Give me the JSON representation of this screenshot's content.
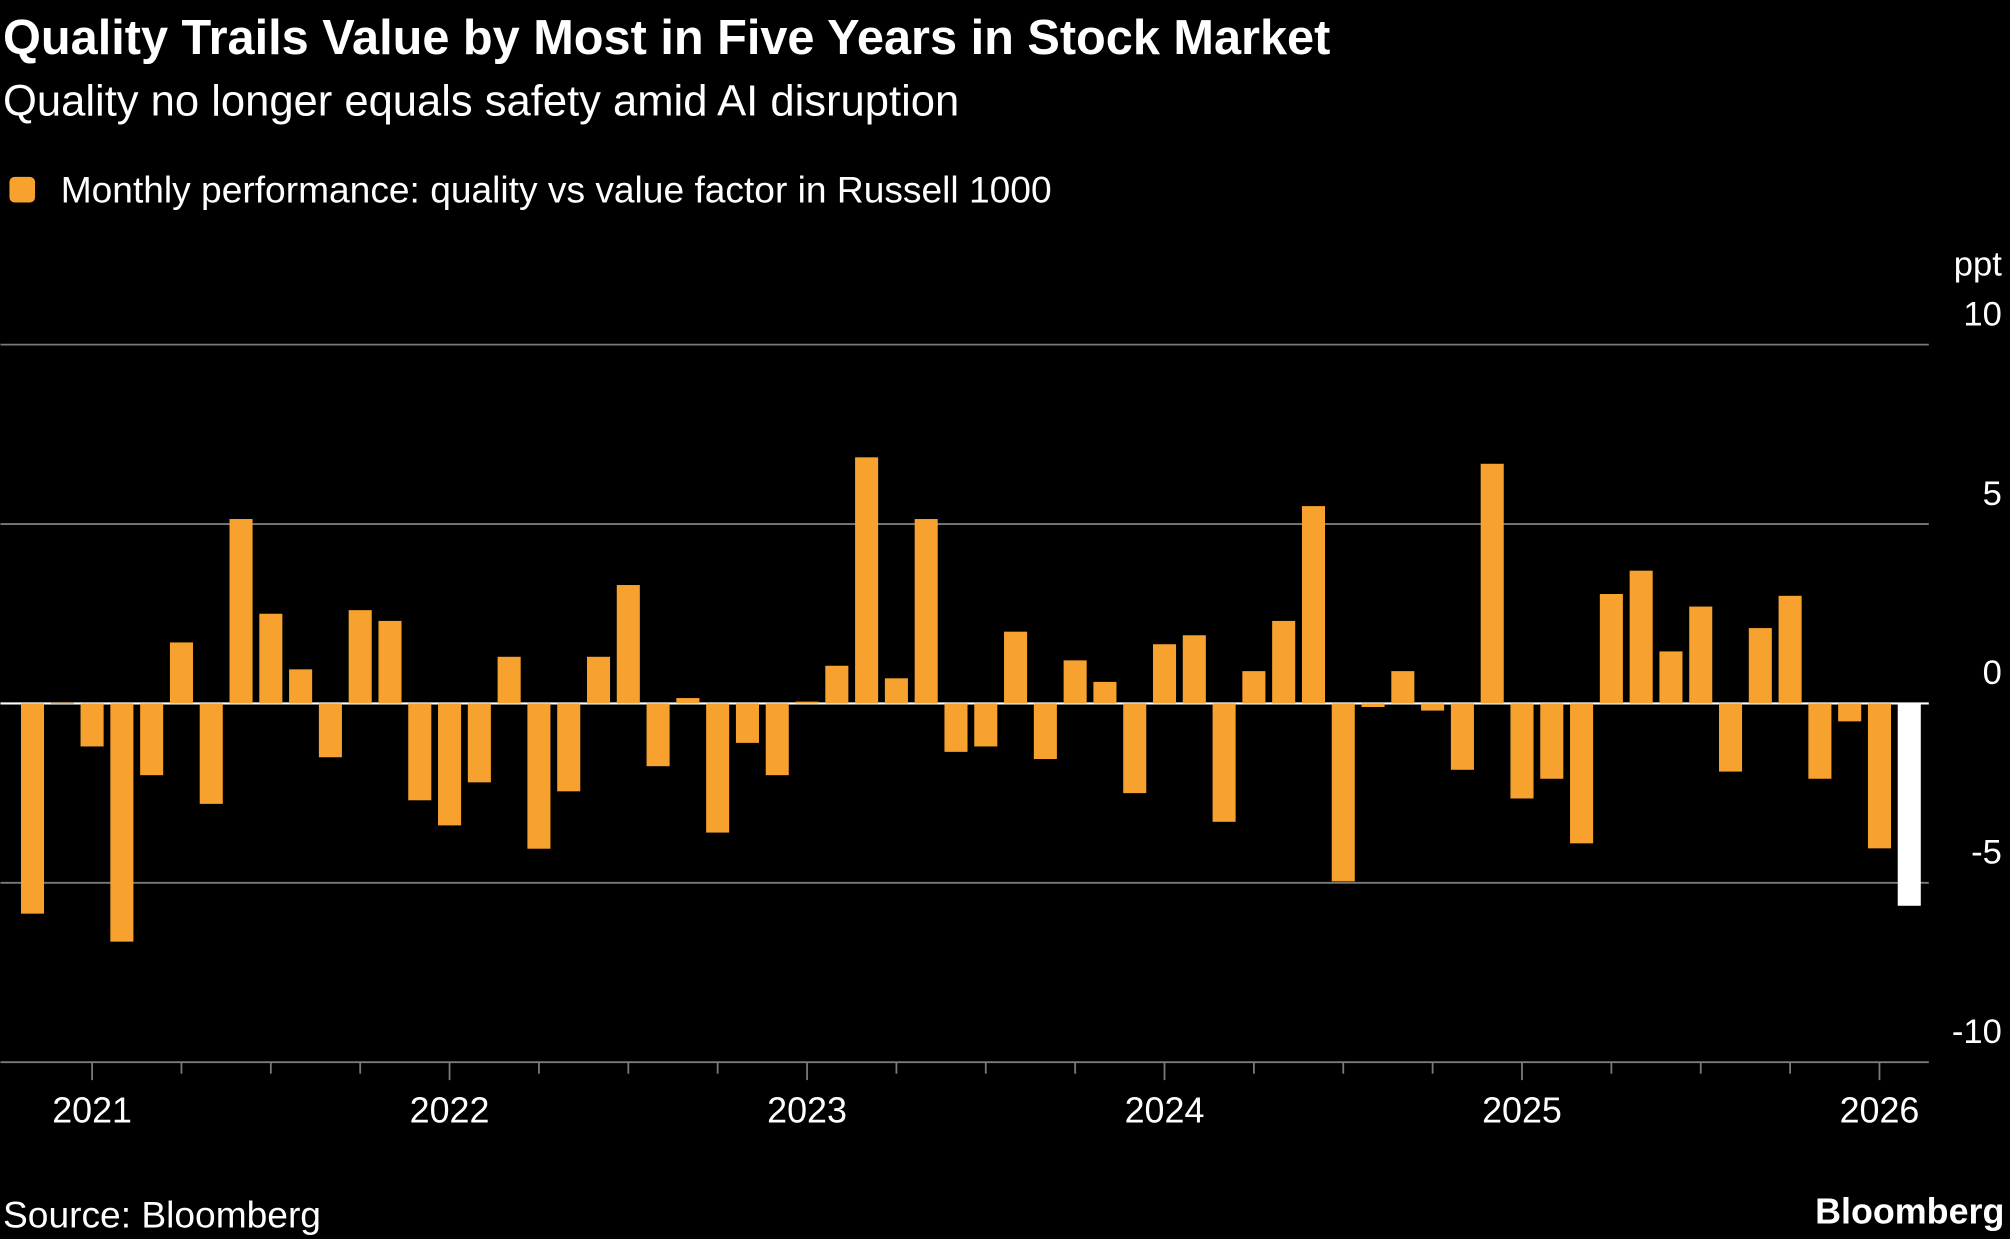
{
  "chart_data": {
    "type": "bar",
    "title": "Quality Trails Value by Most in Five Years in Stock Market",
    "subtitle": "Quality no longer equals safety amid AI disruption",
    "y_axis_label": "ppt",
    "source": "Source: Bloomberg",
    "brand": "Bloomberg",
    "legend": "top-left",
    "grid": true,
    "categories": [
      null,
      null,
      "2021",
      null,
      null,
      null,
      null,
      null,
      null,
      null,
      null,
      null,
      null,
      null,
      "2022",
      null,
      null,
      null,
      null,
      null,
      null,
      null,
      null,
      null,
      null,
      null,
      "2023",
      null,
      null,
      null,
      null,
      null,
      null,
      null,
      null,
      null,
      null,
      null,
      "2024",
      null,
      null,
      null,
      null,
      null,
      null,
      null,
      null,
      null,
      null,
      null,
      "2025",
      null,
      null,
      null,
      null,
      null,
      null,
      null,
      null,
      null,
      null,
      null,
      "2026",
      null
    ],
    "series": [
      {
        "name": "Monthly performance: quality vs value factor in Russell 1000",
        "color": "#f7a12f",
        "values": [
          -5.86,
          0.02,
          -1.2,
          -6.64,
          -2.0,
          1.7,
          -2.8,
          5.14,
          2.5,
          0.95,
          -1.5,
          2.6,
          2.3,
          -2.7,
          -3.4,
          -2.2,
          1.3,
          -4.05,
          -2.45,
          1.3,
          3.3,
          -1.75,
          0.15,
          -3.6,
          -1.1,
          -2.0,
          0.05,
          1.05,
          6.86,
          0.7,
          5.14,
          -1.35,
          -1.2,
          2.0,
          -1.55,
          1.2,
          0.6,
          -2.5,
          1.65,
          1.9,
          -3.3,
          0.9,
          2.3,
          5.5,
          -4.96,
          -0.1,
          0.9,
          -0.2,
          -1.85,
          6.68,
          -2.65,
          -2.1,
          -3.9,
          3.05,
          3.7,
          1.45,
          2.7,
          -1.9,
          2.1,
          3.0,
          -2.1,
          -0.5,
          -4.04,
          -5.64
        ],
        "colors": [
          "#f7a12f",
          "#f7a12f",
          "#f7a12f",
          "#f7a12f",
          "#f7a12f",
          "#f7a12f",
          "#f7a12f",
          "#f7a12f",
          "#f7a12f",
          "#f7a12f",
          "#f7a12f",
          "#f7a12f",
          "#f7a12f",
          "#f7a12f",
          "#f7a12f",
          "#f7a12f",
          "#f7a12f",
          "#f7a12f",
          "#f7a12f",
          "#f7a12f",
          "#f7a12f",
          "#f7a12f",
          "#f7a12f",
          "#f7a12f",
          "#f7a12f",
          "#f7a12f",
          "#f7a12f",
          "#f7a12f",
          "#f7a12f",
          "#f7a12f",
          "#f7a12f",
          "#f7a12f",
          "#f7a12f",
          "#f7a12f",
          "#f7a12f",
          "#f7a12f",
          "#f7a12f",
          "#f7a12f",
          "#f7a12f",
          "#f7a12f",
          "#f7a12f",
          "#f7a12f",
          "#f7a12f",
          "#f7a12f",
          "#f7a12f",
          "#f7a12f",
          "#f7a12f",
          "#f7a12f",
          "#f7a12f",
          "#f7a12f",
          "#f7a12f",
          "#f7a12f",
          "#f7a12f",
          "#f7a12f",
          "#f7a12f",
          "#f7a12f",
          "#f7a12f",
          "#f7a12f",
          "#f7a12f",
          "#f7a12f",
          "#f7a12f",
          "#f7a12f",
          "#f7a12f",
          "#ffffff"
        ]
      }
    ],
    "ylim": [
      -10,
      10
    ],
    "yticks": [
      -10,
      -5,
      0,
      5,
      10
    ]
  }
}
